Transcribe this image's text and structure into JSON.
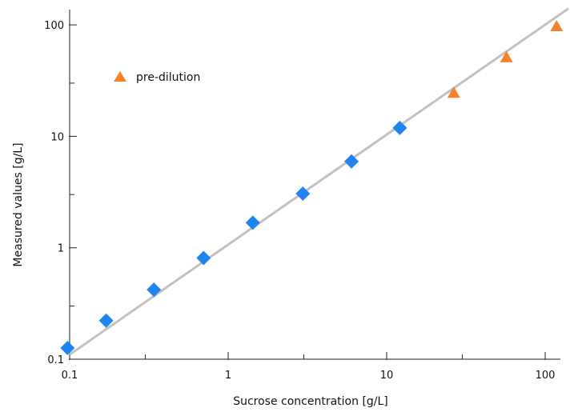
{
  "chart_data": {
    "type": "scatter",
    "title": "",
    "xlabel": "Sucrose concentration [g/L]",
    "ylabel": "Measured values [g/L]",
    "xscale": "log",
    "yscale": "log",
    "xlim": [
      0.1,
      150
    ],
    "ylim": [
      0.1,
      150
    ],
    "x_ticks": [
      {
        "value": 0.1,
        "label": "0.1"
      },
      {
        "value": 1,
        "label": "1"
      },
      {
        "value": 10,
        "label": "10"
      },
      {
        "value": 100,
        "label": "100"
      }
    ],
    "y_ticks": [
      {
        "value": 0.1,
        "label": "0.1"
      },
      {
        "value": 1,
        "label": "1"
      },
      {
        "value": 10,
        "label": "10"
      },
      {
        "value": 100,
        "label": "100"
      }
    ],
    "grid": false,
    "legend_position": "top-left",
    "series": [
      {
        "marker": "diamond",
        "color": "#1f84f0",
        "x": [
          0.097,
          0.17,
          0.34,
          0.7,
          1.43,
          2.96,
          6.0,
          12.1
        ],
        "y": [
          0.126,
          0.222,
          0.42,
          0.81,
          1.68,
          3.06,
          5.95,
          11.9
        ]
      },
      {
        "name": "pre-dilution",
        "marker": "triangle",
        "color": "#f4822a",
        "x": [
          26.5,
          57,
          118
        ],
        "y": [
          24.5,
          51,
          97
        ]
      }
    ],
    "reference_line": {
      "color": "#c5c0bb",
      "x": [
        0.1,
        140
      ],
      "y": [
        0.11,
        140
      ]
    }
  }
}
